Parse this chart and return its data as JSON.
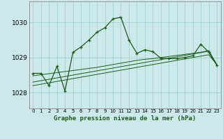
{
  "title": "Graphe pression niveau de la mer (hPa)",
  "bg_color": "#cce8e8",
  "grid_color": "#99cccc",
  "line_color": "#1a5c1a",
  "x_labels": [
    "0",
    "1",
    "2",
    "3",
    "4",
    "5",
    "6",
    "7",
    "8",
    "9",
    "10",
    "11",
    "12",
    "13",
    "14",
    "15",
    "16",
    "17",
    "18",
    "19",
    "20",
    "21",
    "22",
    "23"
  ],
  "ylim": [
    1027.55,
    1030.6
  ],
  "yticks": [
    1028,
    1029,
    1030
  ],
  "main_data": [
    1028.55,
    1028.55,
    1028.2,
    1028.75,
    1028.05,
    1029.15,
    1029.3,
    1029.5,
    1029.72,
    1029.85,
    1030.1,
    1030.15,
    1029.5,
    1029.12,
    1029.22,
    1029.17,
    1028.98,
    1028.97,
    1028.97,
    1029.0,
    1029.05,
    1029.38,
    1029.15,
    1028.78
  ],
  "smooth_line1": [
    1028.2,
    1028.24,
    1028.28,
    1028.32,
    1028.36,
    1028.4,
    1028.44,
    1028.48,
    1028.52,
    1028.56,
    1028.6,
    1028.64,
    1028.68,
    1028.72,
    1028.76,
    1028.8,
    1028.84,
    1028.88,
    1028.92,
    1028.96,
    1029.0,
    1029.04,
    1029.08,
    1028.8
  ],
  "smooth_line2": [
    1028.3,
    1028.34,
    1028.38,
    1028.42,
    1028.46,
    1028.5,
    1028.54,
    1028.58,
    1028.62,
    1028.66,
    1028.7,
    1028.74,
    1028.78,
    1028.82,
    1028.86,
    1028.9,
    1028.94,
    1028.98,
    1029.02,
    1029.06,
    1029.1,
    1029.14,
    1029.18,
    1028.8
  ],
  "smooth_line3": [
    1028.48,
    1028.51,
    1028.54,
    1028.57,
    1028.6,
    1028.63,
    1028.66,
    1028.69,
    1028.72,
    1028.76,
    1028.8,
    1028.84,
    1028.88,
    1028.92,
    1028.95,
    1028.97,
    1029.0,
    1029.03,
    1029.06,
    1029.09,
    1029.12,
    1029.15,
    1029.2,
    1028.8
  ]
}
